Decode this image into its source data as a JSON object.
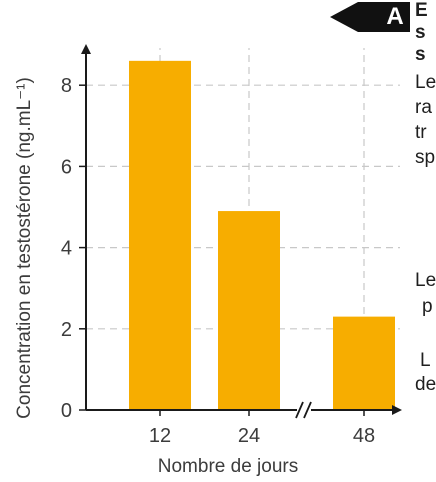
{
  "badge": {
    "letter": "A",
    "color": "#111111"
  },
  "side_text": {
    "lines": [
      "E",
      "s",
      "s",
      "Le",
      "ra",
      "tr",
      "sp",
      "Le",
      "p",
      "L",
      "de"
    ]
  },
  "colors": {
    "bar": "#f7ad00",
    "grid": "#c8c8c8",
    "axis": "#1a1a1a",
    "text": "#3c3c3c"
  },
  "chart_data": {
    "type": "bar",
    "categories": [
      "12",
      "24",
      "48"
    ],
    "values": [
      8.6,
      4.9,
      2.3
    ],
    "xlabel": "Nombre de jours",
    "ylabel": "Concentration en testostérone (ng.mL⁻¹)",
    "yticks": [
      "0",
      "2",
      "4",
      "6",
      "8"
    ],
    "ylim": [
      0,
      9
    ],
    "grid": true,
    "axis_break": true
  }
}
